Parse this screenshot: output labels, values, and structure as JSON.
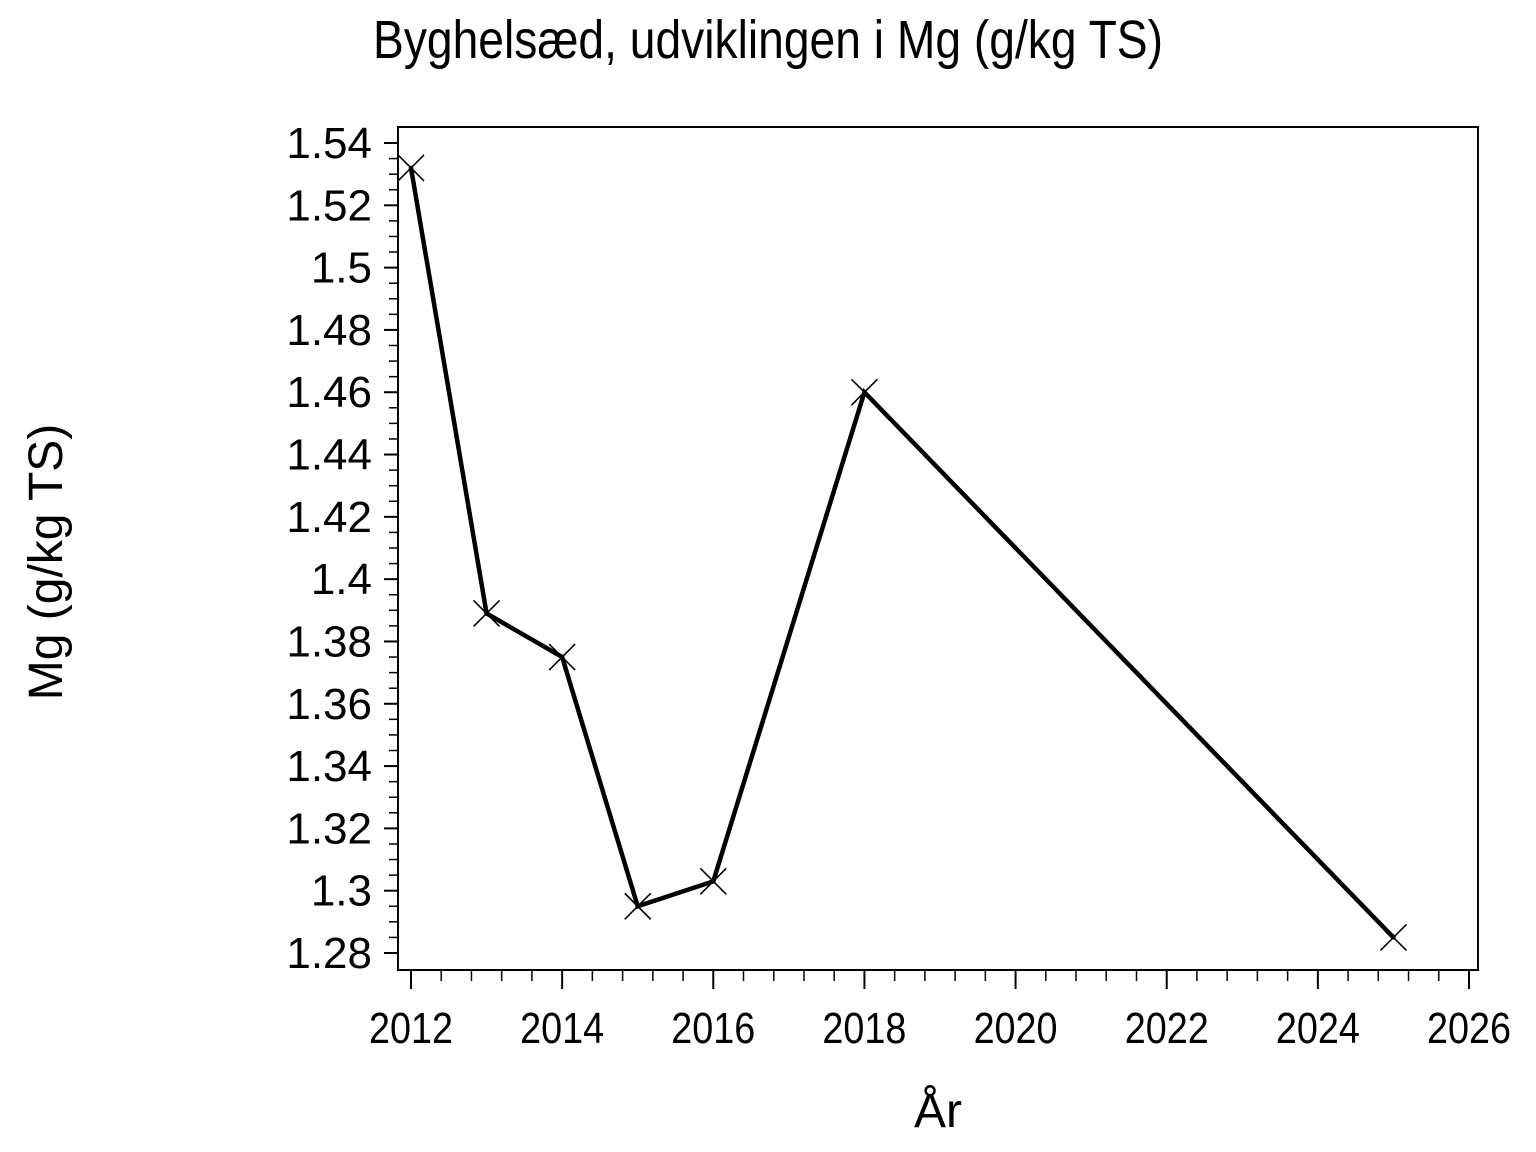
{
  "chart_data": {
    "type": "line",
    "title": "Byghelsæd, udviklingen i Mg (g/kg TS)",
    "xlabel": "År",
    "ylabel": "Mg (g/kg TS)",
    "x": [
      2012,
      2013,
      2014,
      2015,
      2016,
      2018,
      2025
    ],
    "y": [
      1.532,
      1.389,
      1.375,
      1.295,
      1.303,
      1.46,
      1.285
    ],
    "marker": "x-cross",
    "line_color": "#000000",
    "background_color": "#ffffff",
    "grid": false,
    "legend": "none",
    "xlim": [
      2011.83,
      2026.12
    ],
    "ylim": [
      1.2746,
      1.5451
    ],
    "x_major_ticks": [
      2012,
      2014,
      2016,
      2018,
      2020,
      2022,
      2024,
      2026
    ],
    "x_tick_labels": [
      "2012",
      "2014",
      "2016",
      "2018",
      "2020",
      "2022",
      "2024",
      "2026"
    ],
    "x_minor_step": 0.4,
    "y_major_ticks": [
      1.28,
      1.3,
      1.32,
      1.34,
      1.36,
      1.38,
      1.4,
      1.42,
      1.44,
      1.46,
      1.48,
      1.5,
      1.52,
      1.54
    ],
    "y_tick_labels": [
      "1.28",
      "1.3",
      "1.32",
      "1.34",
      "1.36",
      "1.38",
      "1.4",
      "1.42",
      "1.44",
      "1.46",
      "1.48",
      "1.5",
      "1.52",
      "1.54"
    ],
    "y_minor_step": 0.005
  }
}
